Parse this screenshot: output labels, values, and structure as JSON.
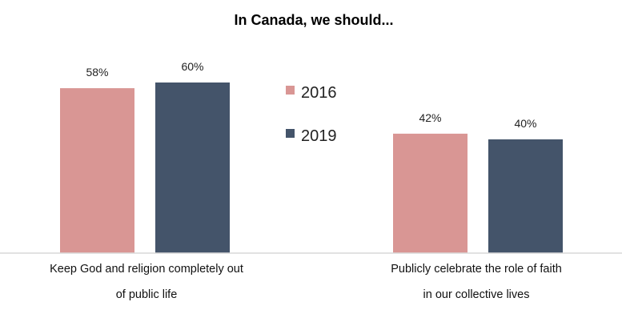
{
  "chart_data": {
    "type": "bar",
    "title": "In Canada, we should...",
    "categories": [
      [
        "Keep God and religion completely out",
        "of public life"
      ],
      [
        "Publicly celebrate the role of faith",
        "in our collective lives"
      ]
    ],
    "series": [
      {
        "name": "2016",
        "values": [
          58,
          42
        ],
        "labels": [
          "58%",
          "42%"
        ],
        "color": "#d99694"
      },
      {
        "name": "2019",
        "values": [
          60,
          40
        ],
        "labels": [
          "60%",
          "40%"
        ],
        "color": "#44546a"
      }
    ],
    "ylim": [
      0,
      100
    ],
    "unit": "%",
    "grid": false,
    "legend_position": "center",
    "baseline_color": "#d9d9d9"
  }
}
